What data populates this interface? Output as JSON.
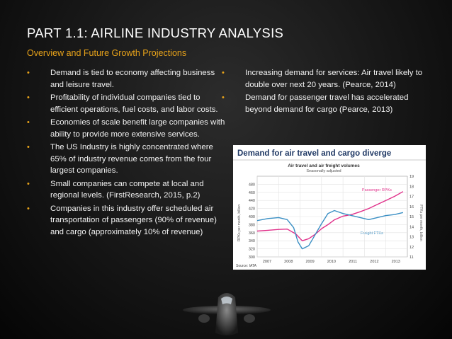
{
  "slide": {
    "title": "PART 1.1: AIRLINE INDUSTRY ANALYSIS",
    "subtitle": "Overview and Future Growth Projections"
  },
  "left_bullets": [
    "Demand is tied to economy affecting business and leisure travel.",
    "Profitability of individual companies tied to efficient operations, fuel costs, and labor costs.",
    "Economies of scale benefit large companies with ability to provide more extensive services.",
    "The US Industry is highly concentrated where 65% of industry revenue comes from the four largest companies.",
    "Small companies can compete at local and regional levels.  (FirstResearch, 2015, p.2)",
    "Companies in this industry offer scheduled air transportation of passengers (90% of revenue) and cargo (approximately 10% of revenue)"
  ],
  "right_bullets": [
    "Increasing demand for services: Air travel likely to double over next 20 years. (Pearce, 2014)",
    "Demand for passenger travel has accelerated beyond demand for cargo (Pearce, 2013)"
  ],
  "bullet_glyph": "•",
  "colors": {
    "accent": "#e8a31a",
    "passenger": "#e0308a",
    "freight": "#3a8fc4",
    "chart_title": "#1f3864"
  },
  "chart_data": {
    "type": "line",
    "title": "Demand for air travel and cargo diverge",
    "subtitle": "Air travel and air freight volumes",
    "note": "Seasonally adjusted",
    "source": "Source: IATA",
    "ylabel_left": "RPKs per month, billion",
    "ylabel_right": "FTKs per month, billion",
    "ylim_left": [
      300,
      500
    ],
    "ylim_right": [
      11,
      19
    ],
    "yticks_left": [
      "480",
      "460",
      "440",
      "420",
      "400",
      "380",
      "360",
      "340",
      "320",
      "300"
    ],
    "yticks_right": [
      "19",
      "18",
      "17",
      "16",
      "15",
      "14",
      "13",
      "12",
      "11"
    ],
    "xticks": [
      "2007",
      "2008",
      "2009",
      "2010",
      "2011",
      "2012",
      "2013"
    ],
    "xlim": [
      2007,
      2014
    ],
    "series": [
      {
        "name": "Passenger RPKs",
        "axis": "left",
        "x": [
          2007.0,
          2007.5,
          2008.0,
          2008.4,
          2008.8,
          2009.1,
          2009.4,
          2009.7,
          2010.0,
          2010.3,
          2010.6,
          2011.0,
          2011.4,
          2011.8,
          2012.2,
          2012.6,
          2013.0,
          2013.4,
          2013.8
        ],
        "values": [
          364,
          366,
          368,
          369,
          357,
          340,
          345,
          356,
          370,
          380,
          392,
          401,
          405,
          412,
          420,
          430,
          440,
          450,
          462
        ]
      },
      {
        "name": "Freight FTKs",
        "axis": "right",
        "x": [
          2007.0,
          2007.5,
          2008.0,
          2008.4,
          2008.7,
          2008.9,
          2009.1,
          2009.4,
          2009.7,
          2010.0,
          2010.3,
          2010.6,
          2011.0,
          2011.4,
          2011.8,
          2012.2,
          2012.6,
          2013.0,
          2013.4,
          2013.8
        ],
        "values": [
          14.6,
          14.8,
          14.9,
          14.7,
          13.9,
          12.5,
          11.8,
          12.1,
          13.2,
          14.3,
          15.3,
          15.6,
          15.3,
          15.1,
          14.9,
          14.7,
          14.9,
          15.1,
          15.2,
          15.4
        ]
      }
    ]
  }
}
